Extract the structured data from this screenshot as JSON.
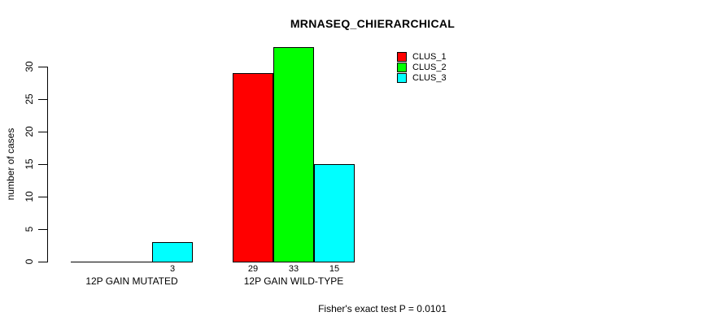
{
  "title": "MRNASEQ_CHIERARCHICAL",
  "footer": "Fisher's exact test P = 0.0101",
  "colors": {
    "clus_1": "#FF0000",
    "clus_2": "#00FF00",
    "clus_3": "#00FFFF",
    "axis": "#000000",
    "background": "#FFFFFF"
  },
  "chart_data": {
    "type": "bar",
    "title": "MRNASEQ_CHIERARCHICAL",
    "categories": [
      "12P GAIN MUTATED",
      "12P GAIN WILD-TYPE"
    ],
    "series": [
      {
        "name": "CLUS_1",
        "color": "#FF0000",
        "values": [
          0,
          29
        ]
      },
      {
        "name": "CLUS_2",
        "color": "#00FF00",
        "values": [
          0,
          33
        ]
      },
      {
        "name": "CLUS_3",
        "color": "#00FFFF",
        "values": [
          3,
          15
        ]
      }
    ],
    "bar_value_labels": [
      [
        null,
        29
      ],
      [
        null,
        33
      ],
      [
        3,
        15
      ]
    ],
    "xlabel": "",
    "ylabel": "number of cases",
    "yticks": [
      0,
      5,
      10,
      15,
      20,
      25,
      30
    ],
    "ylim": [
      0,
      33
    ],
    "grid": false,
    "legend": {
      "position": "top-right",
      "entries": [
        {
          "label": "CLUS_1",
          "color": "#FF0000"
        },
        {
          "label": "CLUS_2",
          "color": "#00FF00"
        },
        {
          "label": "CLUS_3",
          "color": "#00FFFF"
        }
      ]
    },
    "annotation": "Fisher's exact test P = 0.0101"
  }
}
